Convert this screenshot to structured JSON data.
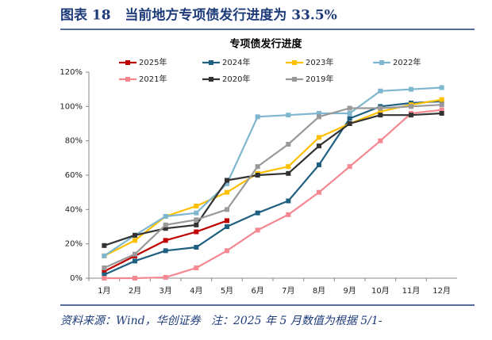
{
  "header": {
    "title": "图表 18   当前地方专项债发行进度为 33.5%"
  },
  "chart_data": {
    "type": "line",
    "title": "专项债发行进度",
    "categories": [
      "1月",
      "2月",
      "3月",
      "4月",
      "5月",
      "6月",
      "7月",
      "8月",
      "9月",
      "10月",
      "11月",
      "12月"
    ],
    "series": [
      {
        "name": "2025年",
        "color": "#c00000",
        "values": [
          4,
          13,
          22,
          27,
          33.5,
          null,
          null,
          null,
          null,
          null,
          null,
          null
        ]
      },
      {
        "name": "2024年",
        "color": "#1f5f7f",
        "values": [
          2,
          10,
          16,
          18,
          30,
          38,
          45,
          66,
          93,
          100,
          102,
          103
        ]
      },
      {
        "name": "2023年",
        "color": "#ffc000",
        "values": [
          13,
          22,
          36,
          42,
          50,
          61,
          65,
          82,
          90,
          97,
          101,
          104
        ]
      },
      {
        "name": "2022年",
        "color": "#7fb6d0",
        "values": [
          13,
          25,
          36,
          38,
          55,
          94,
          95,
          96,
          96,
          109,
          110,
          111
        ]
      },
      {
        "name": "2021年",
        "color": "#f4878f",
        "values": [
          0,
          0,
          0.5,
          6,
          16,
          28,
          37,
          50,
          65,
          80,
          96,
          98
        ]
      },
      {
        "name": "2020年",
        "color": "#333333",
        "values": [
          19,
          25,
          29,
          31,
          57,
          60,
          61,
          77,
          90,
          95,
          95,
          96
        ]
      },
      {
        "name": "2019年",
        "color": "#999999",
        "values": [
          6,
          14,
          31,
          34,
          40,
          65,
          78,
          94,
          99,
          99,
          100,
          101
        ]
      }
    ],
    "ylim": [
      0,
      120
    ],
    "yticks": [
      {
        "value": 0,
        "label": "0%"
      },
      {
        "value": 20,
        "label": "20%"
      },
      {
        "value": 40,
        "label": "40%"
      },
      {
        "value": 60,
        "label": "60%"
      },
      {
        "value": 80,
        "label": "80%"
      },
      {
        "value": 100,
        "label": "100%"
      },
      {
        "value": 120,
        "label": "120%"
      }
    ]
  },
  "footer": {
    "source": "资料来源：Wind，华创证券   注：2025 年 5 月数值为根据 5/1-"
  }
}
